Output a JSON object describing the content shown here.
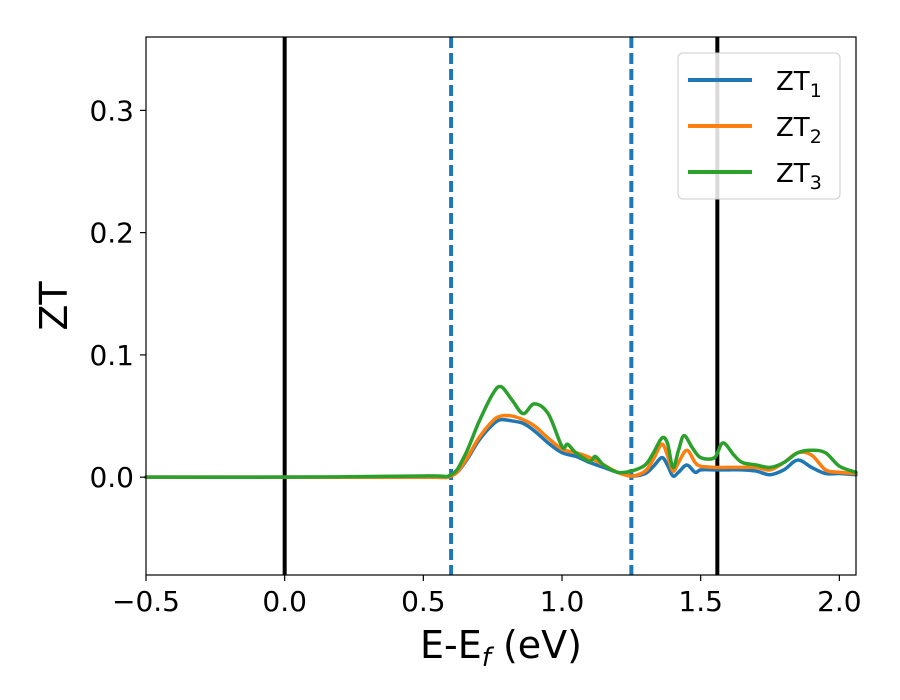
{
  "chart_data": {
    "type": "line",
    "xlabel": "E-E",
    "xlabel_sub": "f",
    "xlabel_unit": " (eV)",
    "ylabel": "ZT",
    "xlim": [
      -0.5,
      2.06
    ],
    "ylim": [
      -0.08,
      0.36
    ],
    "xticks": [
      -0.5,
      0.0,
      0.5,
      1.0,
      1.5,
      2.0
    ],
    "xtick_labels": [
      "−0.5",
      "0.0",
      "0.5",
      "1.0",
      "1.5",
      "2.0"
    ],
    "yticks": [
      0.0,
      0.1,
      0.2,
      0.3
    ],
    "ytick_labels": [
      "0.0",
      "0.1",
      "0.2",
      "0.3"
    ],
    "grid": false,
    "legend_position": "top-right",
    "vlines": [
      {
        "x": 0.0,
        "color": "#000000",
        "style": "solid"
      },
      {
        "x": 0.6,
        "color": "#1f77b4",
        "style": "dashed"
      },
      {
        "x": 1.25,
        "color": "#1f77b4",
        "style": "dashed"
      },
      {
        "x": 1.56,
        "color": "#000000",
        "style": "solid"
      }
    ],
    "series": [
      {
        "name": "ZT",
        "name_sub": "1",
        "color": "#1f77b4",
        "x": [
          -0.5,
          0.0,
          0.5,
          0.6,
          0.65,
          0.7,
          0.75,
          0.78,
          0.82,
          0.86,
          0.9,
          0.95,
          1.0,
          1.05,
          1.1,
          1.15,
          1.2,
          1.25,
          1.3,
          1.33,
          1.36,
          1.38,
          1.4,
          1.42,
          1.45,
          1.48,
          1.5,
          1.55,
          1.6,
          1.65,
          1.7,
          1.75,
          1.8,
          1.85,
          1.9,
          1.95,
          2.0,
          2.06
        ],
        "y": [
          0.0,
          0.0,
          0.0,
          0.001,
          0.012,
          0.03,
          0.043,
          0.047,
          0.046,
          0.044,
          0.038,
          0.028,
          0.02,
          0.017,
          0.012,
          0.008,
          0.004,
          0.001,
          0.003,
          0.009,
          0.016,
          0.01,
          0.001,
          0.004,
          0.01,
          0.004,
          0.006,
          0.006,
          0.006,
          0.006,
          0.005,
          0.002,
          0.006,
          0.014,
          0.008,
          0.003,
          0.003,
          0.002
        ]
      },
      {
        "name": "ZT",
        "name_sub": "2",
        "color": "#ff7f0e",
        "x": [
          -0.5,
          0.0,
          0.5,
          0.6,
          0.65,
          0.7,
          0.75,
          0.78,
          0.82,
          0.86,
          0.9,
          0.95,
          1.0,
          1.05,
          1.1,
          1.15,
          1.2,
          1.25,
          1.3,
          1.33,
          1.36,
          1.38,
          1.4,
          1.42,
          1.45,
          1.48,
          1.5,
          1.55,
          1.6,
          1.65,
          1.7,
          1.75,
          1.8,
          1.85,
          1.9,
          1.95,
          2.0,
          2.06
        ],
        "y": [
          0.0,
          0.0,
          0.0,
          0.001,
          0.013,
          0.032,
          0.046,
          0.05,
          0.05,
          0.047,
          0.042,
          0.032,
          0.023,
          0.02,
          0.016,
          0.01,
          0.004,
          0.001,
          0.005,
          0.015,
          0.027,
          0.018,
          0.005,
          0.012,
          0.022,
          0.012,
          0.009,
          0.008,
          0.008,
          0.008,
          0.008,
          0.006,
          0.012,
          0.02,
          0.018,
          0.006,
          0.004,
          0.003
        ]
      },
      {
        "name": "ZT",
        "name_sub": "3",
        "color": "#2ca02c",
        "x": [
          -0.5,
          0.0,
          0.5,
          0.6,
          0.65,
          0.7,
          0.75,
          0.78,
          0.82,
          0.86,
          0.9,
          0.95,
          1.0,
          1.02,
          1.05,
          1.1,
          1.12,
          1.15,
          1.2,
          1.25,
          1.3,
          1.33,
          1.36,
          1.38,
          1.4,
          1.42,
          1.44,
          1.47,
          1.5,
          1.55,
          1.58,
          1.62,
          1.65,
          1.7,
          1.75,
          1.8,
          1.85,
          1.9,
          1.95,
          2.0,
          2.06
        ],
        "y": [
          0.0,
          0.0,
          0.001,
          0.002,
          0.018,
          0.045,
          0.068,
          0.074,
          0.063,
          0.052,
          0.06,
          0.052,
          0.025,
          0.027,
          0.02,
          0.013,
          0.017,
          0.01,
          0.004,
          0.005,
          0.01,
          0.02,
          0.032,
          0.028,
          0.008,
          0.022,
          0.034,
          0.024,
          0.016,
          0.016,
          0.028,
          0.018,
          0.012,
          0.01,
          0.008,
          0.012,
          0.02,
          0.022,
          0.02,
          0.009,
          0.004
        ]
      }
    ]
  }
}
